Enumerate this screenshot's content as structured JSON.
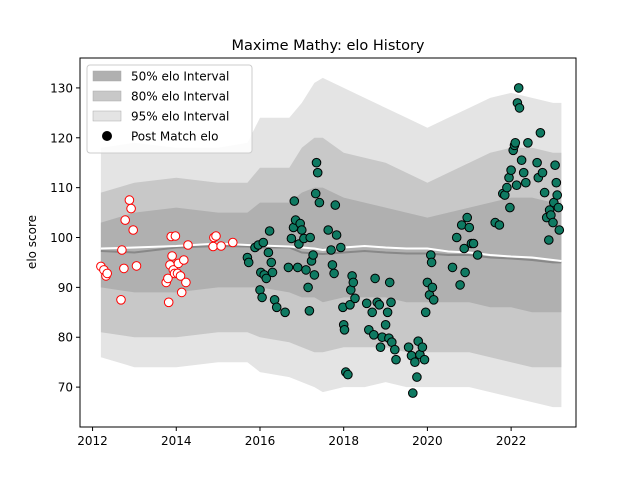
{
  "chart_data": {
    "type": "scatter",
    "title": "Maxime Mathy: elo History",
    "xlabel": "",
    "ylabel": "elo score",
    "xlim": [
      2011.7,
      2023.55
    ],
    "ylim": [
      62,
      136
    ],
    "x_ticks": [
      2012,
      2014,
      2016,
      2018,
      2020,
      2022
    ],
    "y_ticks": [
      70,
      80,
      90,
      100,
      110,
      120,
      130
    ],
    "grid": false,
    "legend": {
      "placement": "top-left",
      "entries": [
        "50% elo Interval",
        "80% elo Interval",
        "95% elo Interval",
        "Post Match elo"
      ]
    },
    "colors": {
      "band_50": "#b0b0b0",
      "band_80": "#c8c8c8",
      "band_95": "#e4e4e4",
      "median_line": "#888888",
      "mean_line": "#ffffff",
      "marker_early_fill": "#ffffff",
      "marker_early_edge": "#ff0000",
      "marker_late_fill": "#0f7a62",
      "marker_late_edge": "#000000"
    },
    "bands": {
      "x": [
        2012.2,
        2013.0,
        2014.0,
        2015.0,
        2015.7,
        2016.0,
        2016.7,
        2017.0,
        2017.3,
        2017.5,
        2018.0,
        2018.5,
        2019.0,
        2019.5,
        2020.0,
        2020.5,
        2021.0,
        2021.5,
        2022.0,
        2022.5,
        2023.0,
        2023.2
      ],
      "p95_upper": [
        118,
        119,
        118,
        118,
        119,
        124,
        124,
        127,
        131,
        132,
        130,
        128,
        126,
        124,
        122,
        124,
        126,
        128,
        129,
        128,
        127,
        127
      ],
      "p80_upper": [
        109,
        111,
        112,
        111,
        111,
        114,
        114,
        118,
        120,
        120,
        117,
        116,
        115,
        113,
        111,
        113,
        115,
        117,
        118,
        118,
        117,
        117
      ],
      "p50_upper": [
        103,
        105,
        106,
        105,
        105,
        107,
        107,
        109,
        110,
        110,
        108,
        107,
        106,
        105,
        104,
        105,
        106,
        107,
        108,
        108,
        107,
        107
      ],
      "median": [
        97.3,
        97.0,
        98.0,
        98.3,
        98.2,
        98.0,
        98.0,
        97.0,
        96.8,
        96.7,
        97.0,
        97.3,
        97.0,
        96.8,
        96.8,
        96.5,
        96.5,
        96.0,
        95.8,
        95.5,
        95.0,
        95.0
      ],
      "mean": [
        97.8,
        98.0,
        98.3,
        98.8,
        98.5,
        98.4,
        98.2,
        98.0,
        97.8,
        97.5,
        98.0,
        98.3,
        98.0,
        97.8,
        97.8,
        97.2,
        97.0,
        96.5,
        96.2,
        96.0,
        95.5,
        95.3
      ],
      "p50_lower": [
        90,
        89,
        89,
        90,
        90,
        90,
        89,
        88,
        88,
        87,
        88,
        88,
        88,
        87,
        87,
        87,
        87,
        86,
        86,
        85,
        85,
        85
      ],
      "p80_lower": [
        81,
        80,
        80,
        81,
        81,
        80,
        79,
        78,
        77,
        77,
        78,
        78,
        78,
        77,
        77,
        77,
        77,
        76,
        75,
        74,
        74,
        74
      ],
      "p95_lower": [
        76,
        74,
        74,
        75,
        75,
        73,
        72,
        71,
        70,
        69,
        70,
        70,
        71,
        70,
        70,
        70,
        70,
        69,
        68,
        67,
        66,
        66
      ]
    },
    "series": [
      {
        "name": "Post Match elo",
        "style": "early",
        "points": [
          [
            2012.2,
            94.2
          ],
          [
            2012.27,
            93.5
          ],
          [
            2012.32,
            92.3
          ],
          [
            2012.35,
            92.8
          ],
          [
            2012.68,
            87.5
          ],
          [
            2012.7,
            97.5
          ],
          [
            2012.75,
            93.8
          ],
          [
            2012.78,
            103.5
          ],
          [
            2012.88,
            107.5
          ],
          [
            2012.92,
            105.8
          ],
          [
            2012.97,
            101.5
          ],
          [
            2013.05,
            94.3
          ],
          [
            2013.76,
            91.0
          ],
          [
            2013.8,
            91.8
          ],
          [
            2013.82,
            87.0
          ],
          [
            2013.85,
            94.5
          ],
          [
            2013.88,
            100.2
          ],
          [
            2013.9,
            96.3
          ],
          [
            2013.93,
            93.5
          ],
          [
            2013.96,
            92.8
          ],
          [
            2013.98,
            100.3
          ],
          [
            2014.03,
            92.8
          ],
          [
            2014.05,
            94.8
          ],
          [
            2014.1,
            92.3
          ],
          [
            2014.13,
            89.0
          ],
          [
            2014.18,
            95.5
          ],
          [
            2014.23,
            91.0
          ],
          [
            2014.28,
            98.5
          ],
          [
            2014.88,
            98.2
          ],
          [
            2014.9,
            100.0
          ],
          [
            2014.95,
            100.3
          ],
          [
            2015.07,
            98.3
          ],
          [
            2015.35,
            99.0
          ]
        ]
      },
      {
        "name": "Post Match elo",
        "style": "late",
        "points": [
          [
            2015.7,
            96.0
          ],
          [
            2015.73,
            95.0
          ],
          [
            2015.88,
            98.0
          ],
          [
            2015.96,
            98.5
          ],
          [
            2016.0,
            89.5
          ],
          [
            2016.02,
            93.0
          ],
          [
            2016.05,
            88.0
          ],
          [
            2016.08,
            99.0
          ],
          [
            2016.1,
            92.5
          ],
          [
            2016.15,
            91.8
          ],
          [
            2016.2,
            97.0
          ],
          [
            2016.23,
            101.3
          ],
          [
            2016.27,
            95.0
          ],
          [
            2016.3,
            93.0
          ],
          [
            2016.35,
            87.5
          ],
          [
            2016.4,
            86.0
          ],
          [
            2016.6,
            85.0
          ],
          [
            2016.68,
            94.0
          ],
          [
            2016.75,
            99.8
          ],
          [
            2016.8,
            102.0
          ],
          [
            2016.82,
            107.3
          ],
          [
            2016.85,
            103.5
          ],
          [
            2016.9,
            94.0
          ],
          [
            2016.93,
            98.7
          ],
          [
            2016.96,
            102.8
          ],
          [
            2017.0,
            101.5
          ],
          [
            2017.05,
            99.8
          ],
          [
            2017.1,
            93.5
          ],
          [
            2017.15,
            90.0
          ],
          [
            2017.18,
            85.3
          ],
          [
            2017.2,
            100.0
          ],
          [
            2017.23,
            95.3
          ],
          [
            2017.27,
            96.5
          ],
          [
            2017.3,
            92.5
          ],
          [
            2017.33,
            108.8
          ],
          [
            2017.35,
            115.0
          ],
          [
            2017.38,
            113.0
          ],
          [
            2017.42,
            107.0
          ],
          [
            2017.63,
            101.5
          ],
          [
            2017.7,
            97.5
          ],
          [
            2017.73,
            94.5
          ],
          [
            2017.77,
            92.8
          ],
          [
            2017.8,
            106.5
          ],
          [
            2017.83,
            100.5
          ],
          [
            2017.93,
            98.0
          ],
          [
            2017.98,
            86.0
          ],
          [
            2018.0,
            82.5
          ],
          [
            2018.02,
            81.5
          ],
          [
            2018.05,
            73.0
          ],
          [
            2018.1,
            72.5
          ],
          [
            2018.15,
            86.5
          ],
          [
            2018.17,
            89.5
          ],
          [
            2018.2,
            92.3
          ],
          [
            2018.23,
            91.0
          ],
          [
            2018.27,
            87.8
          ],
          [
            2018.55,
            86.8
          ],
          [
            2018.6,
            81.5
          ],
          [
            2018.68,
            85.0
          ],
          [
            2018.72,
            80.5
          ],
          [
            2018.75,
            91.8
          ],
          [
            2018.8,
            87.0
          ],
          [
            2018.85,
            86.5
          ],
          [
            2018.88,
            78.0
          ],
          [
            2018.92,
            80.0
          ],
          [
            2019.0,
            82.5
          ],
          [
            2019.05,
            85.0
          ],
          [
            2019.08,
            79.8
          ],
          [
            2019.1,
            91.0
          ],
          [
            2019.13,
            87.0
          ],
          [
            2019.15,
            79.0
          ],
          [
            2019.22,
            77.5
          ],
          [
            2019.25,
            75.5
          ],
          [
            2019.55,
            78.0
          ],
          [
            2019.62,
            76.3
          ],
          [
            2019.65,
            68.8
          ],
          [
            2019.7,
            75.0
          ],
          [
            2019.75,
            72.0
          ],
          [
            2019.78,
            79.2
          ],
          [
            2019.82,
            76.5
          ],
          [
            2019.88,
            78.0
          ],
          [
            2019.93,
            75.5
          ],
          [
            2019.96,
            85.0
          ],
          [
            2020.0,
            91.0
          ],
          [
            2020.05,
            88.5
          ],
          [
            2020.08,
            96.5
          ],
          [
            2020.1,
            95.0
          ],
          [
            2020.12,
            90.0
          ],
          [
            2020.15,
            87.5
          ],
          [
            2020.6,
            94.0
          ],
          [
            2020.7,
            100.0
          ],
          [
            2020.78,
            90.5
          ],
          [
            2020.82,
            102.5
          ],
          [
            2020.88,
            97.8
          ],
          [
            2020.9,
            93.0
          ],
          [
            2020.95,
            104.0
          ],
          [
            2021.0,
            102.0
          ],
          [
            2021.05,
            98.8
          ],
          [
            2021.1,
            98.8
          ],
          [
            2021.2,
            96.5
          ],
          [
            2021.62,
            103.0
          ],
          [
            2021.72,
            102.5
          ],
          [
            2021.8,
            108.8
          ],
          [
            2021.85,
            108.5
          ],
          [
            2021.9,
            110.0
          ],
          [
            2021.95,
            112.0
          ],
          [
            2021.97,
            106.0
          ],
          [
            2022.0,
            113.5
          ],
          [
            2022.05,
            117.5
          ],
          [
            2022.08,
            118.5
          ],
          [
            2022.1,
            119.0
          ],
          [
            2022.13,
            110.5
          ],
          [
            2022.15,
            127.0
          ],
          [
            2022.18,
            130.0
          ],
          [
            2022.2,
            126.0
          ],
          [
            2022.25,
            115.5
          ],
          [
            2022.3,
            113.0
          ],
          [
            2022.35,
            111.0
          ],
          [
            2022.4,
            119.0
          ],
          [
            2022.62,
            115.0
          ],
          [
            2022.65,
            112.0
          ],
          [
            2022.7,
            121.0
          ],
          [
            2022.75,
            113.0
          ],
          [
            2022.8,
            109.0
          ],
          [
            2022.85,
            104.0
          ],
          [
            2022.9,
            99.5
          ],
          [
            2022.92,
            105.5
          ],
          [
            2022.95,
            104.5
          ],
          [
            2023.0,
            103.0
          ],
          [
            2023.02,
            107.0
          ],
          [
            2023.05,
            114.5
          ],
          [
            2023.08,
            111.0
          ],
          [
            2023.1,
            108.5
          ],
          [
            2023.13,
            106.0
          ],
          [
            2023.15,
            101.5
          ]
        ]
      }
    ]
  }
}
